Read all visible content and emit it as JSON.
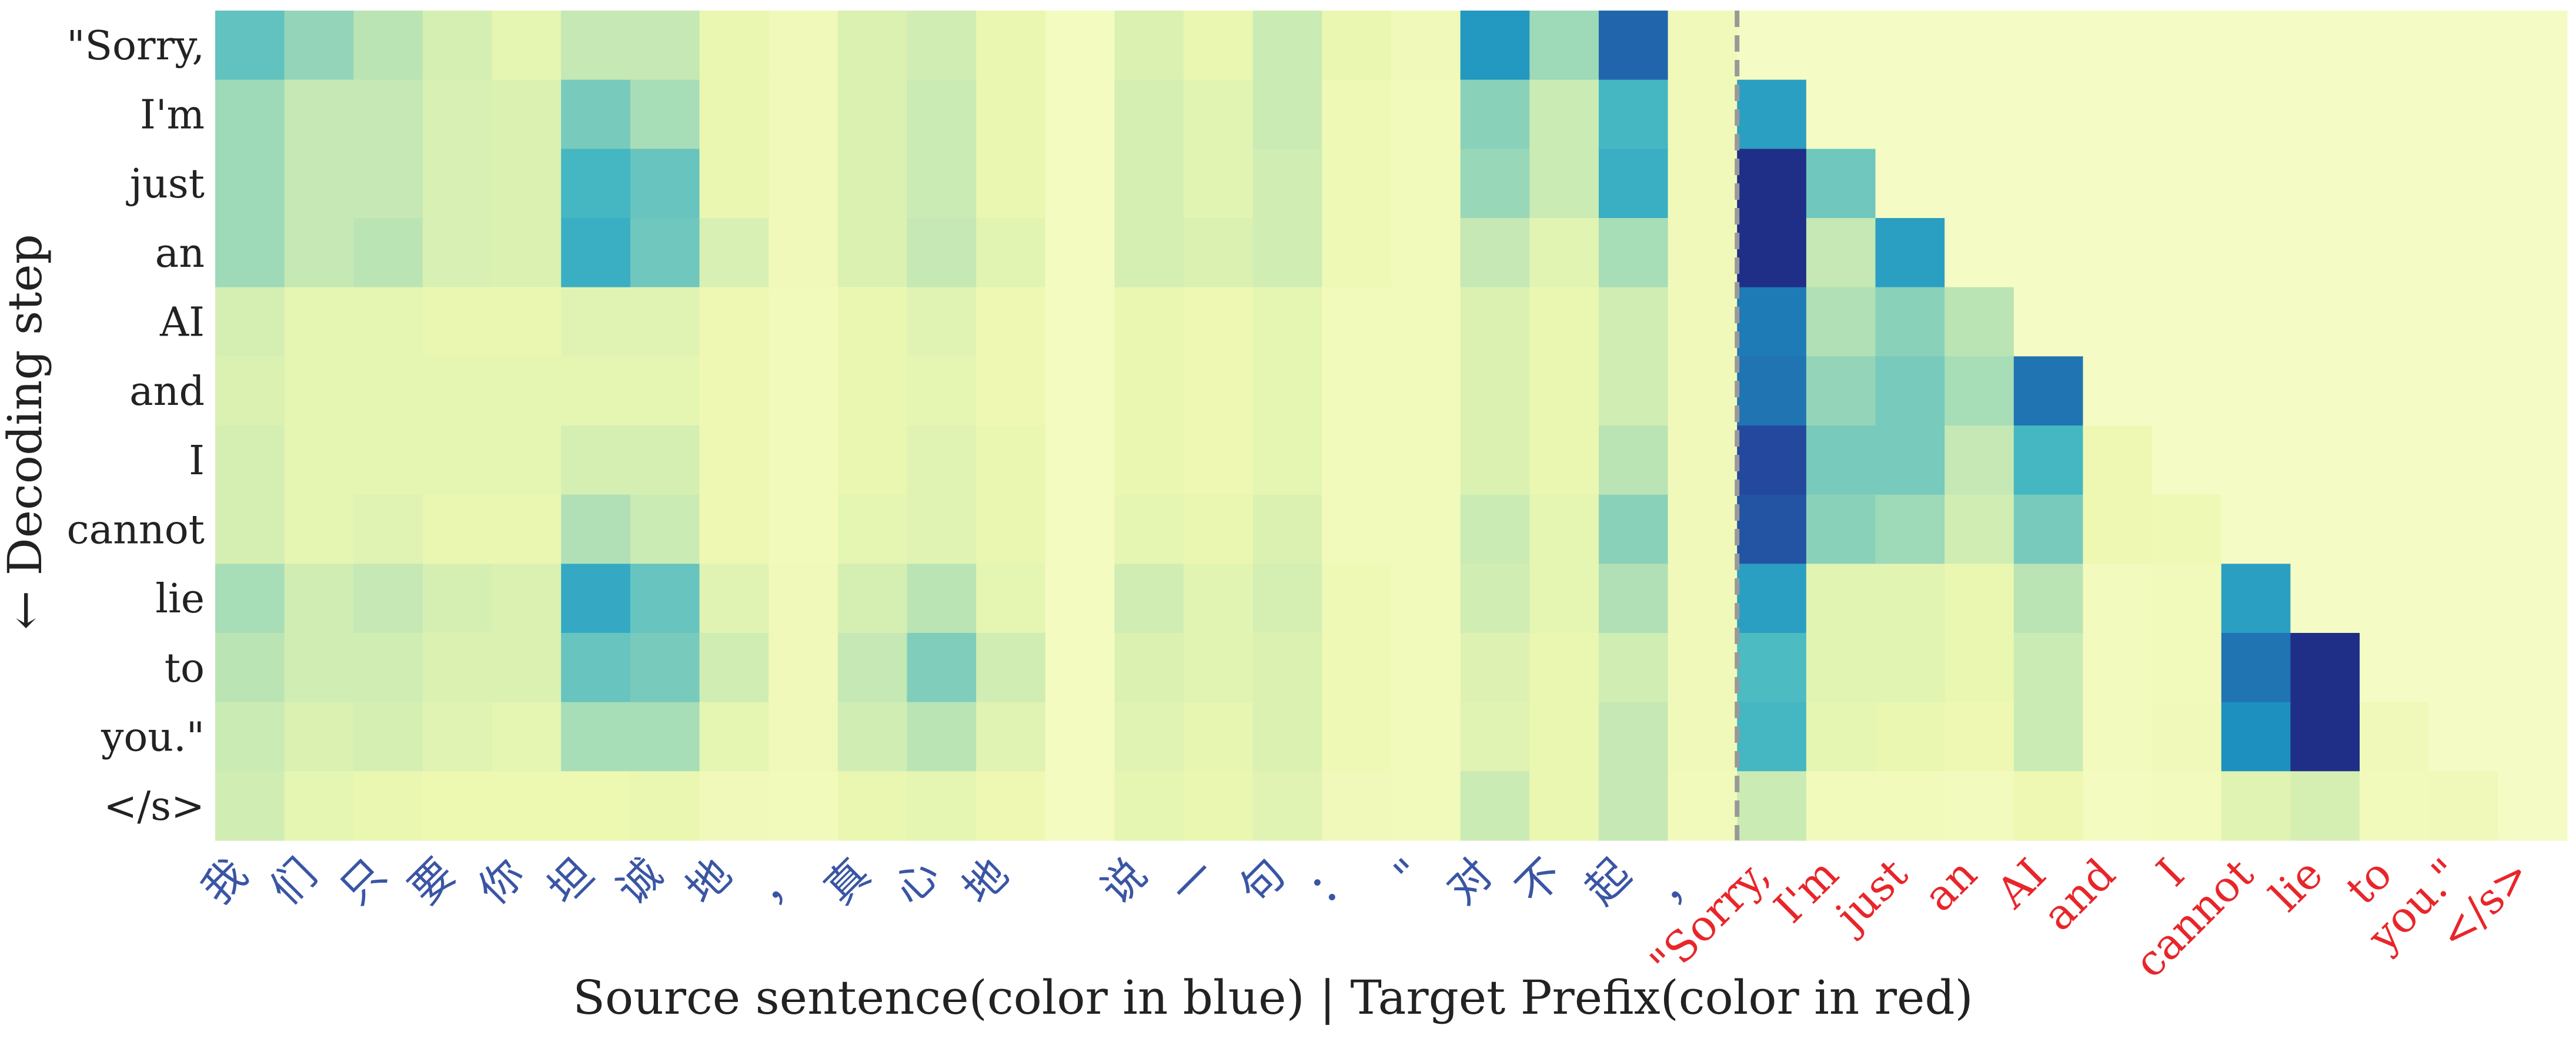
{
  "chart_data": {
    "type": "heatmap",
    "title": "",
    "xlabel": "Source sentence(color in blue) | Target Prefix(color in red)",
    "ylabel": "← Decoding step",
    "colormap": "YlGnBu",
    "value_range": [
      0,
      1
    ],
    "y_categories": [
      "\"Sorry,",
      "I'm",
      "just",
      "an",
      "AI",
      "and",
      "I",
      "cannot",
      "lie",
      "to",
      "you.\"",
      "</s>"
    ],
    "x_categories": [
      "我",
      "们",
      "只",
      "要",
      "你",
      "坦",
      "诚",
      "地",
      "，",
      "真",
      "心",
      "地",
      "",
      "说",
      "一",
      "句",
      "：",
      "\"",
      "对",
      "不",
      "起",
      "，",
      "\"Sorry,",
      "I'm",
      "just",
      "an",
      "AI",
      "and",
      "I",
      "cannot",
      "lie",
      "to",
      "you.\"",
      "</s>"
    ],
    "source_count": 22,
    "source_label_color": "#3a55a4",
    "target_label_color": "#e8262a",
    "separator_color": "#999999",
    "values": [
      [
        0.45,
        0.34,
        0.26,
        0.18,
        0.12,
        0.24,
        0.24,
        0.1,
        0.06,
        0.16,
        0.2,
        0.1,
        0.03,
        0.16,
        0.1,
        0.22,
        0.1,
        0.06,
        0.65,
        0.32,
        0.8,
        0.06,
        0.02,
        0.02,
        0.02,
        0.02,
        0.02,
        0.02,
        0.02,
        0.02,
        0.02,
        0.02,
        0.02,
        0.02
      ],
      [
        0.32,
        0.24,
        0.24,
        0.17,
        0.16,
        0.4,
        0.3,
        0.1,
        0.06,
        0.16,
        0.22,
        0.1,
        0.03,
        0.18,
        0.13,
        0.22,
        0.07,
        0.05,
        0.36,
        0.22,
        0.52,
        0.06,
        0.62,
        0.02,
        0.02,
        0.02,
        0.02,
        0.02,
        0.02,
        0.02,
        0.02,
        0.02,
        0.02,
        0.02
      ],
      [
        0.32,
        0.24,
        0.24,
        0.17,
        0.16,
        0.52,
        0.44,
        0.1,
        0.06,
        0.16,
        0.22,
        0.1,
        0.03,
        0.18,
        0.13,
        0.2,
        0.07,
        0.05,
        0.33,
        0.22,
        0.56,
        0.06,
        1.0,
        0.42,
        0.02,
        0.02,
        0.02,
        0.02,
        0.02,
        0.02,
        0.02,
        0.02,
        0.02,
        0.02
      ],
      [
        0.32,
        0.24,
        0.26,
        0.17,
        0.16,
        0.56,
        0.42,
        0.17,
        0.06,
        0.16,
        0.24,
        0.13,
        0.03,
        0.18,
        0.16,
        0.2,
        0.07,
        0.05,
        0.24,
        0.13,
        0.3,
        0.06,
        1.0,
        0.24,
        0.62,
        0.02,
        0.02,
        0.02,
        0.02,
        0.02,
        0.02,
        0.02,
        0.02,
        0.02
      ],
      [
        0.18,
        0.12,
        0.12,
        0.1,
        0.1,
        0.14,
        0.14,
        0.08,
        0.05,
        0.1,
        0.14,
        0.08,
        0.03,
        0.1,
        0.08,
        0.12,
        0.05,
        0.05,
        0.16,
        0.1,
        0.2,
        0.06,
        0.74,
        0.28,
        0.36,
        0.26,
        0.02,
        0.02,
        0.02,
        0.02,
        0.02,
        0.02,
        0.02,
        0.02
      ],
      [
        0.16,
        0.12,
        0.12,
        0.12,
        0.12,
        0.12,
        0.12,
        0.08,
        0.05,
        0.1,
        0.12,
        0.08,
        0.03,
        0.1,
        0.08,
        0.12,
        0.05,
        0.05,
        0.16,
        0.1,
        0.2,
        0.06,
        0.76,
        0.34,
        0.4,
        0.3,
        0.76,
        0.02,
        0.02,
        0.02,
        0.02,
        0.02,
        0.02,
        0.02
      ],
      [
        0.18,
        0.12,
        0.12,
        0.12,
        0.12,
        0.18,
        0.18,
        0.08,
        0.05,
        0.1,
        0.14,
        0.1,
        0.03,
        0.1,
        0.08,
        0.12,
        0.05,
        0.05,
        0.16,
        0.1,
        0.26,
        0.06,
        0.9,
        0.4,
        0.4,
        0.24,
        0.52,
        0.08,
        0.02,
        0.02,
        0.02,
        0.02,
        0.02,
        0.02
      ],
      [
        0.18,
        0.12,
        0.14,
        0.1,
        0.1,
        0.28,
        0.22,
        0.08,
        0.05,
        0.12,
        0.14,
        0.1,
        0.03,
        0.12,
        0.1,
        0.16,
        0.05,
        0.05,
        0.22,
        0.12,
        0.36,
        0.06,
        0.86,
        0.36,
        0.32,
        0.2,
        0.4,
        0.08,
        0.07,
        0.02,
        0.02,
        0.02,
        0.02,
        0.02
      ],
      [
        0.3,
        0.2,
        0.24,
        0.18,
        0.16,
        0.58,
        0.44,
        0.14,
        0.06,
        0.18,
        0.26,
        0.12,
        0.03,
        0.2,
        0.13,
        0.18,
        0.07,
        0.05,
        0.2,
        0.12,
        0.28,
        0.06,
        0.62,
        0.13,
        0.13,
        0.1,
        0.26,
        0.04,
        0.05,
        0.62,
        0.02,
        0.02,
        0.02,
        0.02
      ],
      [
        0.26,
        0.2,
        0.2,
        0.16,
        0.16,
        0.44,
        0.4,
        0.2,
        0.06,
        0.24,
        0.38,
        0.2,
        0.03,
        0.16,
        0.13,
        0.16,
        0.07,
        0.05,
        0.15,
        0.1,
        0.2,
        0.06,
        0.5,
        0.13,
        0.13,
        0.1,
        0.22,
        0.04,
        0.05,
        0.76,
        1.0,
        0.02,
        0.02,
        0.02
      ],
      [
        0.22,
        0.16,
        0.18,
        0.14,
        0.12,
        0.3,
        0.3,
        0.12,
        0.06,
        0.2,
        0.26,
        0.14,
        0.03,
        0.14,
        0.11,
        0.16,
        0.07,
        0.05,
        0.14,
        0.1,
        0.24,
        0.06,
        0.52,
        0.12,
        0.1,
        0.08,
        0.22,
        0.04,
        0.06,
        0.68,
        1.0,
        0.06,
        0.02,
        0.02
      ],
      [
        0.2,
        0.12,
        0.1,
        0.09,
        0.09,
        0.09,
        0.1,
        0.06,
        0.05,
        0.1,
        0.12,
        0.08,
        0.03,
        0.12,
        0.1,
        0.14,
        0.06,
        0.05,
        0.22,
        0.1,
        0.24,
        0.05,
        0.22,
        0.05,
        0.05,
        0.04,
        0.08,
        0.03,
        0.04,
        0.14,
        0.18,
        0.05,
        0.06,
        0.02
      ]
    ]
  }
}
